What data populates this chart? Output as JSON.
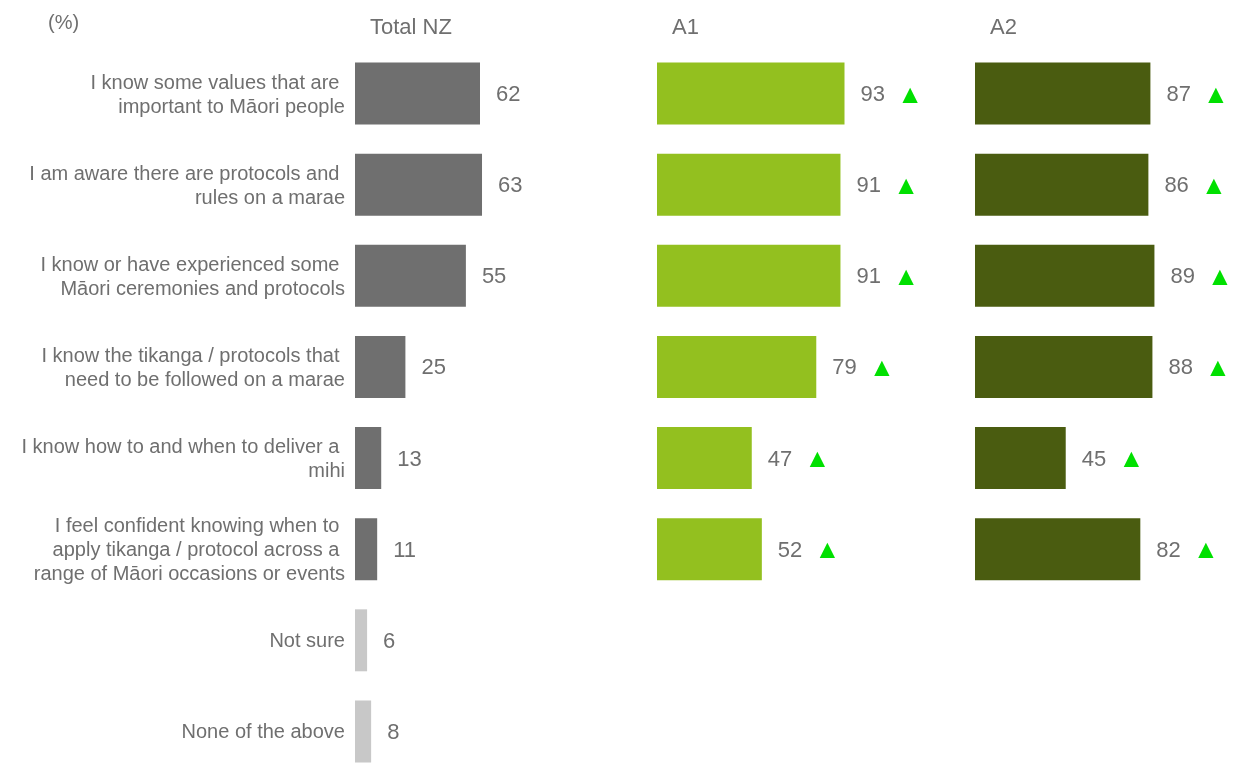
{
  "chart_data": [
    {
      "type": "bar",
      "orientation": "horizontal",
      "title": "Total NZ",
      "annotations": [
        "(%)"
      ],
      "tick_labels": "y",
      "data_labels": true,
      "categories": [
        "I know some values that are important to Māori people",
        "I am aware there are protocols and rules on a marae",
        "I know or have experienced some Māori ceremonies and protocols",
        "I know the tikanga / protocols that need to be followed on a marae",
        "I know how to and when to deliver a mihi",
        "I feel confident knowing when to apply tikanga / protocol across a range of Māori occasions or events",
        "Not sure",
        "None of the above"
      ],
      "values": [
        62,
        63,
        55,
        25,
        13,
        11,
        6,
        8
      ],
      "colors": [
        "#6f6f6f",
        "#6f6f6f",
        "#6f6f6f",
        "#6f6f6f",
        "#6f6f6f",
        "#6f6f6f",
        "#c8c8c8",
        "#c8c8c8"
      ]
    },
    {
      "type": "bar",
      "orientation": "horizontal",
      "title": "A1",
      "tick_labels": false,
      "categories": [
        null,
        null,
        null,
        null,
        null,
        null,
        null,
        null
      ],
      "values": [
        93,
        91,
        91,
        79,
        47,
        52,
        null,
        null
      ],
      "value_labels": [
        "93 ▲",
        "91 ▲",
        "91 ▲",
        "79 ▲",
        "47 ▲",
        "52 ▲",
        null,
        null
      ],
      "color": "#93c01f"
    },
    {
      "type": "bar",
      "orientation": "horizontal",
      "title": "A2",
      "tick_labels": false,
      "categories": [
        null,
        null,
        null,
        null,
        null,
        null,
        null,
        null
      ],
      "values": [
        87,
        86,
        89,
        88,
        45,
        82,
        null,
        null
      ],
      "value_labels": [
        "87 ▲",
        "86 ▲",
        "89 ▲",
        "88 ▲",
        "45 ▲",
        "82 ▲",
        null,
        null
      ],
      "color": "#4a5c10"
    }
  ]
}
